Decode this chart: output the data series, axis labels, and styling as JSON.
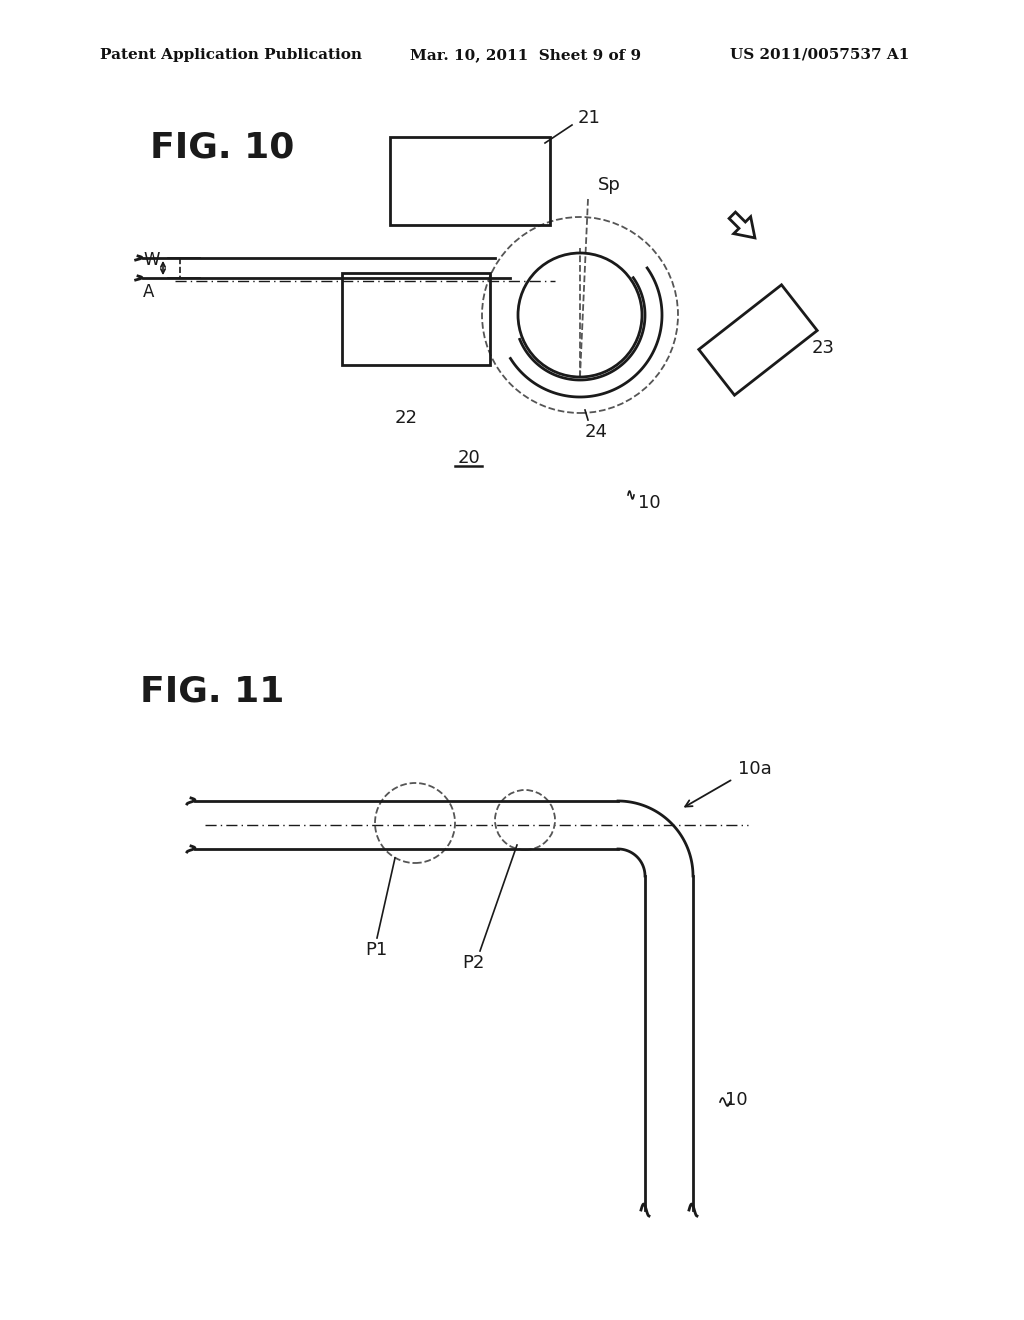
{
  "bg_color": "#ffffff",
  "header_left": "Patent Application Publication",
  "header_mid": "Mar. 10, 2011  Sheet 9 of 9",
  "header_right": "US 2011/0057537 A1",
  "fig10_label": "FIG. 10",
  "fig11_label": "FIG. 11"
}
